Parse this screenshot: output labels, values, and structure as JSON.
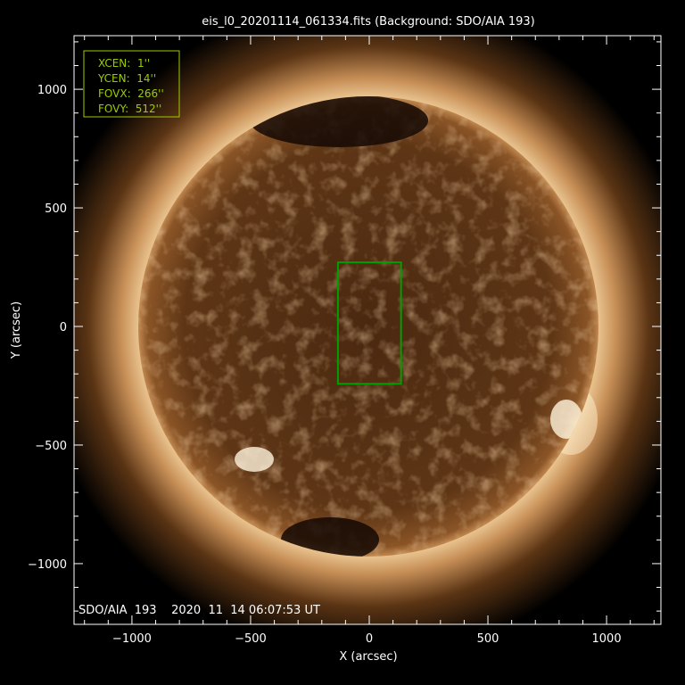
{
  "chart_data": {
    "type": "image",
    "title": "eis_l0_20201114_061334.fits  (Background: SDO/AIA 193)",
    "xlabel": "X (arcsec)",
    "ylabel": "Y (arcsec)",
    "xlim": [
      -1244,
      1229
    ],
    "ylim": [
      -1256,
      1226
    ],
    "xticks": [
      -1000,
      -500,
      0,
      500,
      1000
    ],
    "yticks": [
      -1000,
      -500,
      0,
      500,
      1000
    ],
    "xtick_labels": [
      "−1000",
      "−500",
      "0",
      "500",
      "1000"
    ],
    "ytick_labels": [
      "−1000",
      "−500",
      "0",
      "500",
      "1000"
    ],
    "minor_tick_step": 100,
    "solar_radius_arcsec": 970,
    "image_caption": "SDO/AIA  193    2020  11  14 06:07:53 UT",
    "colors": {
      "box": "#00a000",
      "info_text": "#9acd00",
      "axes": "#ffffff",
      "sun_core": "#5a3010",
      "corona": "#f0c890"
    },
    "eis_fov": {
      "xcen": 1,
      "ycen": 14,
      "fovx": 266,
      "fovy": 512,
      "lines": [
        "XCEN:  1''",
        "YCEN:  14''",
        "FOVX:  266''",
        "FOVY:  512''"
      ]
    }
  }
}
